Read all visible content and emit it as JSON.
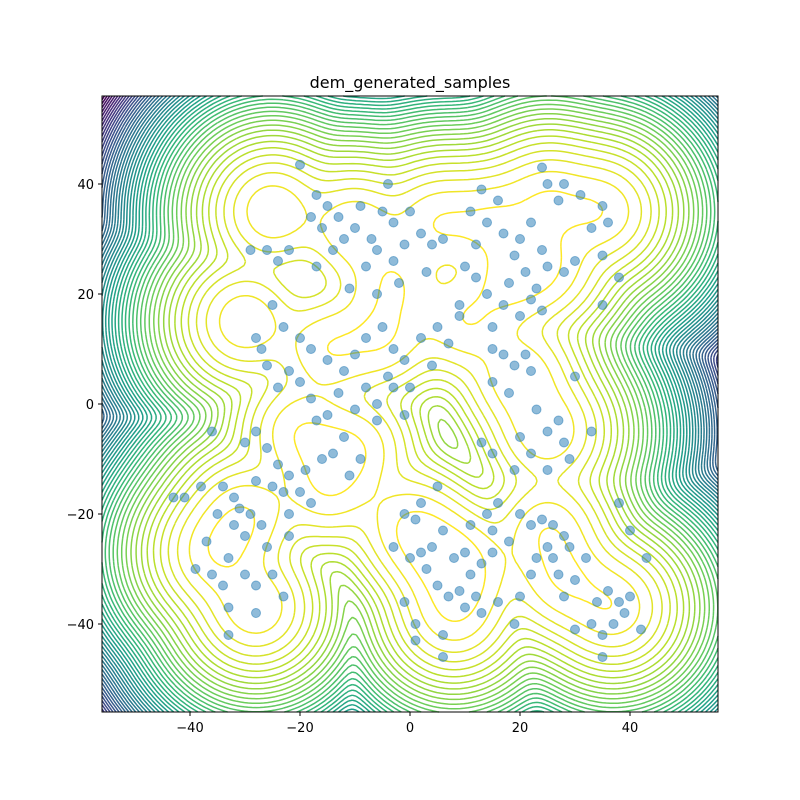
{
  "chart_data": {
    "type": "contour_scatter",
    "title": "dem_generated_samples",
    "xlim": [
      -56,
      56
    ],
    "ylim": [
      -56,
      56
    ],
    "xticks": [
      {
        "value": -40,
        "label": "−40"
      },
      {
        "value": -20,
        "label": "−20"
      },
      0,
      20,
      40
    ],
    "yticks": [
      {
        "value": -40,
        "label": "−40"
      },
      {
        "value": -20,
        "label": "−20"
      },
      0,
      20,
      40
    ],
    "color": "#1f77b4",
    "contour": {
      "colormap": "viridis",
      "levels": 50,
      "scale": 5,
      "centers": [
        [
          -25,
          35
        ],
        [
          -10,
          32
        ],
        [
          -3,
          22
        ],
        [
          5,
          33
        ],
        [
          15,
          33
        ],
        [
          25,
          37
        ],
        [
          35,
          35
        ],
        [
          18,
          22
        ],
        [
          25,
          25
        ],
        [
          -30,
          15
        ],
        [
          -15,
          10
        ],
        [
          -5,
          12
        ],
        [
          10,
          15
        ],
        [
          20,
          5
        ],
        [
          25,
          -5
        ],
        [
          -20,
          -5
        ],
        [
          -10,
          -8
        ],
        [
          -30,
          -20
        ],
        [
          -35,
          -27
        ],
        [
          -28,
          -37
        ],
        [
          0,
          -22
        ],
        [
          5,
          -27
        ],
        [
          10,
          -30
        ],
        [
          8,
          -38
        ],
        [
          25,
          -23
        ],
        [
          28,
          -32
        ],
        [
          37,
          -37
        ],
        [
          -15,
          -15
        ]
      ]
    },
    "x": [
      -20,
      -17,
      -15,
      -18,
      -13,
      -16,
      -12,
      -9,
      -10,
      -7,
      -4,
      -5,
      -3,
      -6,
      -26,
      -22,
      -24,
      -17,
      -14,
      -8,
      -3,
      -1,
      0,
      2,
      4,
      6,
      3,
      -2,
      -6,
      -11,
      13,
      16,
      11,
      14,
      12,
      17,
      20,
      22,
      24,
      19,
      21,
      18,
      23,
      25,
      28,
      30,
      27,
      25,
      28,
      24,
      31,
      35,
      36,
      33,
      38,
      35,
      17,
      20,
      22,
      24,
      14,
      12,
      10,
      9,
      15,
      35,
      -29,
      -28,
      -25,
      -23,
      -20,
      -18,
      -15,
      -12,
      -10,
      -8,
      -5,
      -3,
      -1,
      2,
      5,
      7,
      9,
      4,
      -13,
      -10,
      -8,
      -6,
      -15,
      -18,
      -20,
      -22,
      -24,
      -26,
      -27,
      -17,
      -12,
      -9,
      -11,
      -14,
      -6,
      -3,
      -1,
      -4,
      0,
      15,
      17,
      21,
      19,
      22,
      15,
      18,
      23,
      25,
      20,
      22,
      27,
      28,
      29,
      33,
      13,
      15,
      19,
      25,
      30,
      -36,
      -30,
      -28,
      -26,
      -24,
      -22,
      -20,
      -18,
      -23,
      -25,
      -28,
      -32,
      -34,
      -31,
      -29,
      -32,
      -30,
      -35,
      -38,
      -41,
      -37,
      -33,
      -30,
      -36,
      -34,
      -28,
      -25,
      -26,
      -22,
      -22,
      -27,
      -33,
      -28,
      -33,
      -23,
      -39,
      -43,
      -19,
      -16,
      -1,
      1,
      -3,
      0,
      2,
      4,
      6,
      3,
      5,
      7,
      9,
      10,
      12,
      11,
      8,
      10,
      13,
      15,
      11,
      14,
      5,
      2,
      -1,
      1,
      6,
      6,
      1,
      13,
      16,
      19,
      15,
      18,
      20,
      16,
      22,
      24,
      26,
      28,
      25,
      23,
      26,
      29,
      27,
      22,
      30,
      32,
      28,
      34,
      36,
      38,
      40,
      39,
      37,
      42,
      35,
      33,
      30,
      35,
      38,
      40,
      43,
      20
    ],
    "y": [
      43.5,
      38,
      36,
      34,
      34,
      32,
      30,
      36,
      32,
      30,
      40,
      35,
      33,
      28,
      28,
      28,
      26,
      25,
      28,
      25,
      26,
      29,
      35,
      31,
      29,
      30,
      24,
      22,
      20,
      21,
      39,
      37,
      35,
      33,
      29,
      31,
      30,
      33,
      28,
      27,
      24,
      22,
      21,
      25,
      24,
      26,
      37,
      40,
      40,
      43,
      38,
      36,
      33,
      32,
      23,
      27,
      18,
      16,
      19,
      17,
      20,
      23,
      25,
      18,
      14,
      18,
      28,
      12,
      18,
      14,
      12,
      10,
      8,
      6,
      9,
      12,
      14,
      10,
      8,
      12,
      14,
      11,
      16,
      7,
      2,
      -1,
      3,
      0,
      -2,
      1,
      4,
      6,
      3,
      7,
      10,
      -3,
      -6,
      -10,
      -13,
      -9,
      -3,
      3,
      -2,
      5,
      3,
      10,
      9,
      9,
      7,
      6,
      4,
      2,
      -1,
      -5,
      -6,
      -9,
      -3,
      -7,
      -10,
      -5,
      -7,
      -9,
      -12,
      -12,
      5,
      -5,
      -7,
      -5,
      -8,
      -11,
      -13,
      -16,
      -18,
      -16,
      -15,
      -14,
      -17,
      -15,
      -19,
      -20,
      -22,
      -24,
      -20,
      -15,
      -17,
      -25,
      -28,
      -31,
      -31,
      -33,
      -33,
      -31,
      -26,
      -24,
      -20,
      -22,
      -37,
      -38,
      -42,
      -35,
      -30,
      -17,
      -12,
      -10,
      -20,
      -21,
      -26,
      -28,
      -27,
      -26,
      -23,
      -30,
      -33,
      -35,
      -34,
      -37,
      -35,
      -31,
      -28,
      -27,
      -29,
      -27,
      -22,
      -20,
      -15,
      -18,
      -36,
      -40,
      -42,
      -46,
      -43,
      -38,
      -36,
      -40,
      -23,
      -25,
      -20,
      -18,
      -22,
      -21,
      -22,
      -24,
      -26,
      -28,
      -28,
      -26,
      -31,
      -31,
      -32,
      -28,
      -35,
      -36,
      -34,
      -36,
      -35,
      -38,
      -40,
      -41,
      -42,
      -40,
      -41,
      -46,
      -18,
      -23,
      -28,
      -35
    ]
  }
}
